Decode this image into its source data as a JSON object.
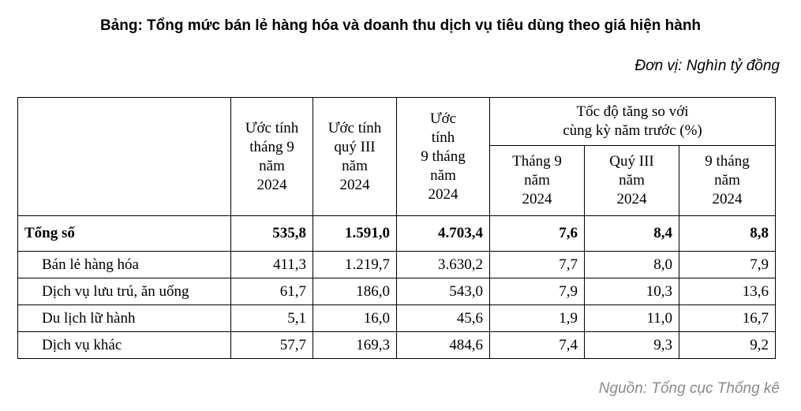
{
  "title": "Bảng: Tổng mức bán lẻ hàng hóa và doanh thu dịch vụ tiêu dùng theo giá hiện hành",
  "unit": "Đơn vị: Nghìn tỷ đồng",
  "source": "Nguồn: Tổng cục Thống kê",
  "table": {
    "headers": {
      "col1": [
        "Ước tính",
        "tháng 9",
        "năm",
        "2024"
      ],
      "col2": [
        "Ước tính",
        "quý III",
        "năm",
        "2024"
      ],
      "col3": [
        "Ước",
        "tính",
        "9 tháng",
        "năm",
        "2024"
      ],
      "growth_group": [
        "Tốc độ tăng so với",
        "cùng kỳ năm trước (%)"
      ],
      "g1": [
        "Tháng 9",
        "năm",
        "2024"
      ],
      "g2": [
        "Quý III",
        "năm",
        "2024"
      ],
      "g3": [
        "9 tháng",
        "năm",
        "2024"
      ]
    },
    "rows": [
      {
        "label": "Tổng số",
        "values": [
          "535,8",
          "1.591,0",
          "4.703,4",
          "7,6",
          "8,4",
          "8,8"
        ]
      },
      {
        "label": "Bán lẻ hàng hóa",
        "values": [
          "411,3",
          "1.219,7",
          "3.630,2",
          "7,7",
          "8,0",
          "7,9"
        ]
      },
      {
        "label": "Dịch vụ lưu trú, ăn uống",
        "values": [
          "61,7",
          "186,0",
          "543,0",
          "7,9",
          "10,3",
          "13,6"
        ]
      },
      {
        "label": "Du lịch lữ hành",
        "values": [
          "5,1",
          "16,0",
          "45,6",
          "1,9",
          "11,0",
          "16,7"
        ]
      },
      {
        "label": "Dịch vụ khác",
        "values": [
          "57,7",
          "169,3",
          "484,6",
          "7,4",
          "9,3",
          "9,2"
        ]
      }
    ]
  }
}
